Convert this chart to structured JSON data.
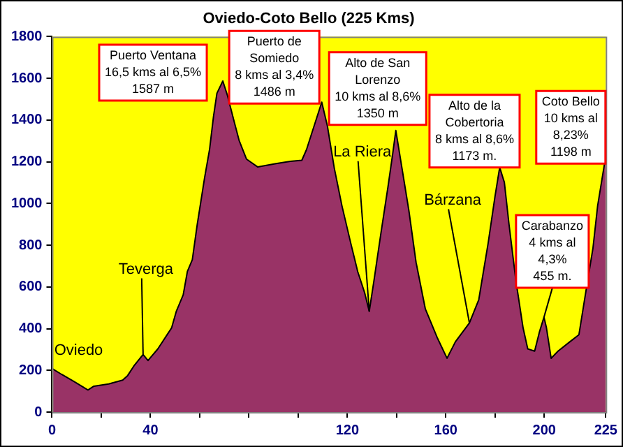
{
  "chart_data": {
    "type": "area",
    "title": "Oviedo-Coto Bello (225 Kms)",
    "x": [
      0,
      4,
      9,
      14.6,
      17,
      23,
      28.7,
      30.6,
      33.5,
      37,
      39,
      43,
      48.6,
      50.5,
      53.3,
      55,
      57,
      59,
      62,
      64,
      65.6,
      67,
      69.4,
      71.3,
      74,
      76,
      79,
      83.6,
      91,
      96.8,
      101.5,
      103.4,
      109.6,
      111.9,
      114.7,
      117.8,
      121.4,
      124.2,
      127,
      128.9,
      130.8,
      133.6,
      136.5,
      138.4,
      139.7,
      142.2,
      145,
      147.9,
      151.7,
      156.4,
      160.5,
      163.9,
      169.6,
      173.4,
      177.2,
      180,
      181.9,
      183.8,
      185.7,
      188.5,
      191.4,
      193.3,
      196.1,
      198,
      199.9,
      200.9,
      202.8,
      205.6,
      210.4,
      214.1,
      217,
      219.8,
      221.7,
      224.5,
      225
    ],
    "series": [
      {
        "color": "#993366",
        "values": [
          209,
          180,
          146,
          106,
          124,
          135,
          153,
          173,
          225,
          276,
          247,
          303,
          404,
          483,
          562,
          674,
          730,
          899,
          1124,
          1258,
          1416,
          1528,
          1587,
          1517,
          1393,
          1303,
          1213,
          1175,
          1191,
          1202,
          1207,
          1258,
          1486,
          1371,
          1169,
          989,
          809,
          674,
          573,
          483,
          629,
          854,
          1079,
          1236,
          1350,
          1169,
          966,
          719,
          494,
          360,
          258,
          337,
          427,
          539,
          809,
          1034,
          1173,
          1101,
          899,
          629,
          404,
          303,
          292,
          382,
          455,
          404,
          258,
          292,
          337,
          371,
          584,
          786,
          989,
          1191,
          1198
        ]
      }
    ],
    "xlim": [
      0,
      225
    ],
    "xticks": [
      0,
      {
        "value": 20,
        "label": null
      },
      40,
      {
        "value": 60,
        "label": null
      },
      {
        "value": 80,
        "label": null
      },
      {
        "value": 100,
        "label": null
      },
      120,
      {
        "value": 140,
        "label": null
      },
      160,
      {
        "value": 180,
        "label": null
      },
      200,
      225
    ],
    "ylim": [
      0,
      1800
    ],
    "yticks": [
      0,
      200,
      400,
      600,
      800,
      1000,
      1200,
      1400,
      1600,
      1800
    ],
    "grid": false,
    "legend": false,
    "annotations": [
      {
        "text": "Puerto Ventana\n16,5 kms al 6,5%\n1587 m",
        "x": 69.4,
        "y": 1587
      },
      {
        "text": "Puerto de\nSomiedo\n8 kms al 3,4%\n1486 m",
        "x": 109.6,
        "y": 1486
      },
      {
        "text": "Alto de San\nLorenzo\n10 kms al 8,6%\n1350 m",
        "x": 139.7,
        "y": 1350
      },
      {
        "text": "Alto de la\nCobertoria\n8 kms al 8,6%\n1173 m.",
        "x": 181.9,
        "y": 1173
      },
      {
        "text": "Coto Bello\n10 kms al\n8,23%\n1198 m",
        "x": 225,
        "y": 1198
      },
      {
        "text": "Carabanzo\n4 kms al\n4,3%\n455 m.",
        "x": 199.9,
        "y": 455
      },
      {
        "text": "Teverga",
        "x": 37,
        "y": 276
      },
      {
        "text": "La Riera",
        "x": 128.9,
        "y": 483
      },
      {
        "text": "Bárzana",
        "x": 169.6,
        "y": 427
      },
      {
        "text": "Oviedo",
        "x": 0,
        "y": 209
      }
    ]
  }
}
